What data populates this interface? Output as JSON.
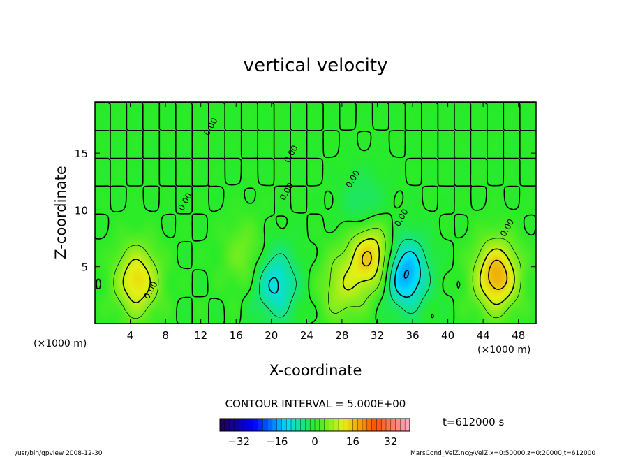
{
  "chart_data": {
    "type": "heatmap",
    "title": "vertical velocity",
    "xlabel": "X-coordinate",
    "ylabel": "Z-coordinate",
    "x_unit_left": "(×1000 m)",
    "x_unit_right": "(×1000 m)",
    "xlim": [
      0,
      50
    ],
    "ylim": [
      0,
      19.5
    ],
    "x_ticks": [
      4,
      8,
      12,
      16,
      20,
      24,
      28,
      32,
      36,
      40,
      44,
      48
    ],
    "y_ticks": [
      5,
      10,
      15
    ],
    "contour_interval_text": "CONTOUR INTERVAL = 5.000E+00",
    "zero_contour_label": "0.00",
    "zero_label_positions": [
      {
        "x": 13.4,
        "y": 17.2
      },
      {
        "x": 22.5,
        "y": 14.8
      },
      {
        "x": 10.5,
        "y": 10.6
      },
      {
        "x": 22.0,
        "y": 11.5
      },
      {
        "x": 29.5,
        "y": 12.6
      },
      {
        "x": 35.0,
        "y": 9.2
      },
      {
        "x": 47.0,
        "y": 8.3
      },
      {
        "x": 6.6,
        "y": 2.8
      }
    ],
    "colorbar_ticks": [
      -32,
      -16,
      0,
      16,
      32
    ],
    "colorbar_range": [
      -40,
      40
    ],
    "time_label": "t=612000 s",
    "features": [
      {
        "x": 4.8,
        "z": 3.8,
        "value": 14
      },
      {
        "x": 31.2,
        "z": 6.0,
        "value": 16
      },
      {
        "x": 45.5,
        "z": 4.2,
        "value": 18
      },
      {
        "x": 35.2,
        "z": 4.4,
        "value": -16
      },
      {
        "x": 20.5,
        "z": 3.5,
        "value": -11
      },
      {
        "x": 28.0,
        "z": 3.2,
        "value": 8
      },
      {
        "x": 17.0,
        "z": 6.0,
        "value": 5
      },
      {
        "x": 30.5,
        "z": 10.0,
        "value": -5
      }
    ]
  },
  "footer": {
    "left": "/usr/bin/gpview   2008-12-30",
    "right": "MarsCond_VelZ.nc@VelZ,x=0:50000,z=0:20000,t=612000"
  }
}
